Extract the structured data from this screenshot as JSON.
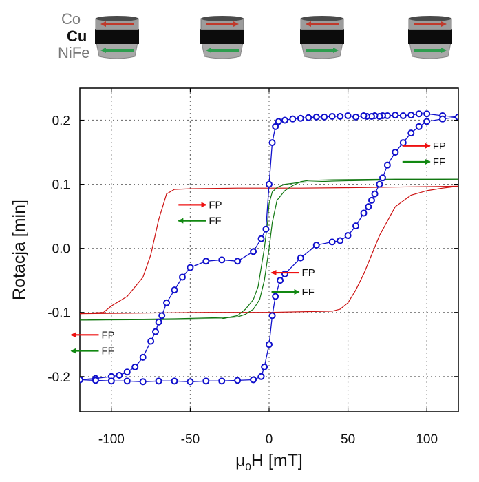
{
  "layer_labels": {
    "top": {
      "text": "Co",
      "color": "#777777"
    },
    "middle": {
      "text": "Cu",
      "color": "#111111"
    },
    "bottom": {
      "text": "NiFe",
      "color": "#777777"
    }
  },
  "stack_states": [
    {
      "top_arrow": "left",
      "bottom_arrow": "left"
    },
    {
      "top_arrow": "right",
      "bottom_arrow": "left"
    },
    {
      "top_arrow": "left",
      "bottom_arrow": "right"
    },
    {
      "top_arrow": "right",
      "bottom_arrow": "right"
    }
  ],
  "colors": {
    "circle_series": "#1010cc",
    "fp_curve": "#cc1111",
    "ff_curve": "#117711",
    "fp_arrow": "#ee1111",
    "ff_arrow": "#118811",
    "layer_red_arrow": "#c0392b",
    "layer_green_arrow": "#2e9e4f"
  },
  "annotations": [
    {
      "label": "FP",
      "arrow": "right",
      "color_key": "fp_arrow",
      "x": 102,
      "y": 0.16
    },
    {
      "label": "FF",
      "arrow": "right",
      "color_key": "ff_arrow",
      "x": 102,
      "y": 0.135
    },
    {
      "label": "FP",
      "arrow": "right",
      "color_key": "fp_arrow",
      "x": -40,
      "y": 0.068
    },
    {
      "label": "FF",
      "arrow": "left",
      "color_key": "ff_arrow",
      "x": -40,
      "y": 0.043
    },
    {
      "label": "FP",
      "arrow": "left",
      "color_key": "fp_arrow",
      "x": 19,
      "y": -0.038
    },
    {
      "label": "FF",
      "arrow": "right",
      "color_key": "ff_arrow",
      "x": 19,
      "y": -0.068
    },
    {
      "label": "FP",
      "arrow": "left",
      "color_key": "fp_arrow",
      "x": -108,
      "y": -0.135
    },
    {
      "label": "FF",
      "arrow": "left",
      "color_key": "ff_arrow",
      "x": -108,
      "y": -0.16
    }
  ],
  "chart_data": {
    "type": "line",
    "xlabel": "μ0H [mT]",
    "ylabel": "Rotacja [min]",
    "xlim": [
      -120,
      120
    ],
    "ylim": [
      -0.255,
      0.25
    ],
    "xticks": [
      -100,
      -50,
      0,
      50,
      100
    ],
    "yticks": [
      -0.2,
      -0.1,
      0.0,
      0.1,
      0.2
    ],
    "xtick_labels": [
      "-100",
      "-50",
      "0",
      "50",
      "100"
    ],
    "ytick_labels": [
      "-0.2",
      "-0.1",
      "0.0",
      "0.1",
      "0.2"
    ],
    "grid": true,
    "series": [
      {
        "style": "circles",
        "color_key": "circle_series",
        "branches": [
          {
            "x": [
              120,
              110,
              100,
              95,
              90,
              85,
              80,
              75,
              72,
              70,
              67,
              65,
              62,
              60,
              55,
              50,
              45,
              40,
              35,
              30,
              25,
              20,
              15,
              10,
              6,
              4,
              2,
              0,
              -2,
              -5,
              -10,
              -20,
              -30,
              -40,
              -50,
              -55,
              -60,
              -65,
              -68,
              -70,
              -72,
              -75,
              -80,
              -85,
              -90,
              -95,
              -100,
              -110,
              -120
            ],
            "y": [
              0.205,
              0.207,
              0.21,
              0.21,
              0.208,
              0.207,
              0.208,
              0.207,
              0.207,
              0.206,
              0.207,
              0.206,
              0.206,
              0.207,
              0.205,
              0.207,
              0.206,
              0.206,
              0.205,
              0.205,
              0.204,
              0.203,
              0.202,
              0.2,
              0.198,
              0.19,
              0.165,
              0.1,
              0.03,
              0.015,
              -0.005,
              -0.02,
              -0.018,
              -0.02,
              -0.03,
              -0.045,
              -0.065,
              -0.085,
              -0.105,
              -0.115,
              -0.13,
              -0.145,
              -0.17,
              -0.185,
              -0.193,
              -0.198,
              -0.2,
              -0.203,
              -0.205
            ]
          },
          {
            "x": [
              -120,
              -110,
              -100,
              -90,
              -80,
              -70,
              -60,
              -50,
              -40,
              -30,
              -20,
              -10,
              -5,
              -3,
              0,
              2,
              4,
              7,
              10,
              20,
              30,
              40,
              45,
              50,
              55,
              60,
              63,
              65,
              67,
              70,
              72,
              75,
              80,
              85,
              90,
              95,
              100,
              110,
              120
            ],
            "y": [
              -0.205,
              -0.206,
              -0.207,
              -0.207,
              -0.208,
              -0.207,
              -0.207,
              -0.208,
              -0.207,
              -0.207,
              -0.206,
              -0.205,
              -0.2,
              -0.185,
              -0.15,
              -0.105,
              -0.075,
              -0.05,
              -0.04,
              -0.015,
              0.005,
              0.01,
              0.012,
              0.02,
              0.035,
              0.055,
              0.065,
              0.075,
              0.085,
              0.1,
              0.11,
              0.13,
              0.15,
              0.165,
              0.18,
              0.19,
              0.198,
              0.202,
              0.205
            ]
          }
        ]
      },
      {
        "style": "line",
        "color_key": "fp_curve",
        "branches": [
          {
            "x": [
              120,
              90,
              60,
              20,
              -20,
              -50,
              -60,
              -65,
              -70,
              -75,
              -80,
              -90,
              -100,
              -105,
              -120
            ],
            "y": [
              0.097,
              0.096,
              0.095,
              0.094,
              0.094,
              0.093,
              0.092,
              0.085,
              0.045,
              -0.01,
              -0.045,
              -0.075,
              -0.09,
              -0.1,
              -0.102
            ]
          },
          {
            "x": [
              -120,
              -80,
              -40,
              0,
              40,
              45,
              50,
              55,
              60,
              65,
              70,
              80,
              90,
              100,
              110,
              120
            ],
            "y": [
              -0.102,
              -0.101,
              -0.1,
              -0.1,
              -0.098,
              -0.095,
              -0.085,
              -0.065,
              -0.04,
              -0.01,
              0.02,
              0.065,
              0.083,
              0.09,
              0.094,
              0.097
            ]
          }
        ]
      },
      {
        "style": "line",
        "color_key": "ff_curve",
        "branches": [
          {
            "x": [
              120,
              80,
              40,
              25,
              20,
              15,
              10,
              5,
              2,
              0,
              -3,
              -6,
              -10,
              -15,
              -20,
              -25,
              -30,
              -60,
              -120
            ],
            "y": [
              0.108,
              0.108,
              0.107,
              0.106,
              0.104,
              0.098,
              0.09,
              0.075,
              0.04,
              0.0,
              -0.05,
              -0.08,
              -0.095,
              -0.103,
              -0.107,
              -0.108,
              -0.108,
              -0.11,
              -0.112
            ]
          },
          {
            "x": [
              -120,
              -60,
              -30,
              -20,
              -15,
              -10,
              -7,
              -5,
              -3,
              -1,
              0,
              2,
              5,
              10,
              20,
              40,
              80,
              120
            ],
            "y": [
              -0.112,
              -0.111,
              -0.11,
              -0.105,
              -0.095,
              -0.08,
              -0.06,
              -0.03,
              0.0,
              0.04,
              0.07,
              0.088,
              0.095,
              0.1,
              0.103,
              0.105,
              0.107,
              0.108
            ]
          }
        ]
      }
    ]
  }
}
